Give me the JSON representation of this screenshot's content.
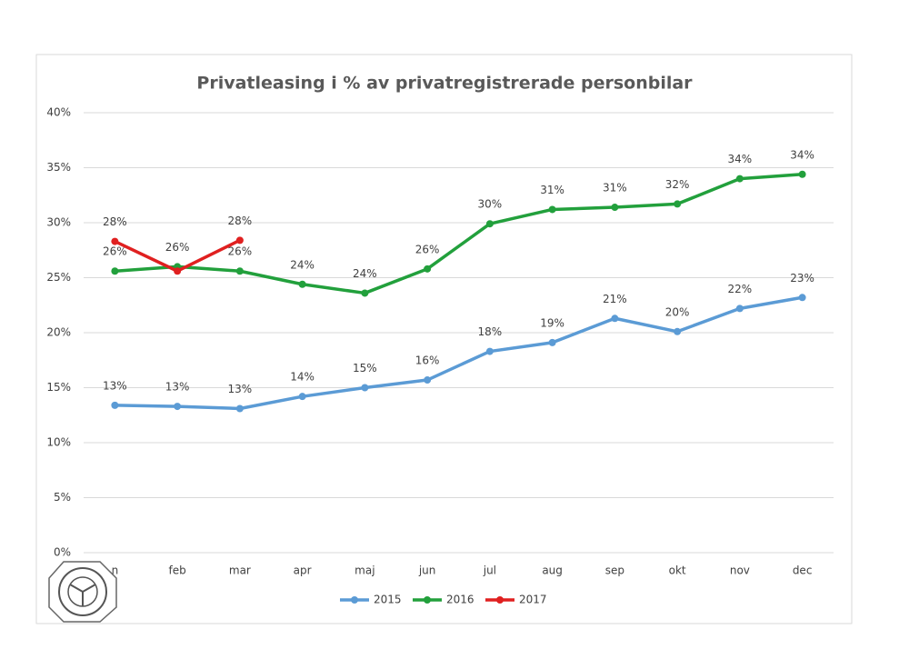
{
  "chart_data": {
    "type": "line",
    "title": "Privatleasing i % av privatregistrerade personbilar",
    "categories": [
      "n",
      "feb",
      "mar",
      "apr",
      "maj",
      "jun",
      "jul",
      "aug",
      "sep",
      "okt",
      "nov",
      "dec"
    ],
    "series": [
      {
        "name": "2015",
        "color": "#5b9bd5",
        "values": [
          13.4,
          13.3,
          13.1,
          14.2,
          15.0,
          15.7,
          18.3,
          19.1,
          21.3,
          20.1,
          22.2,
          23.2
        ],
        "value_labels": [
          "13%",
          "13%",
          "13%",
          "14%",
          "15%",
          "16%",
          "18%",
          "19%",
          "21%",
          "20%",
          "22%",
          "23%"
        ]
      },
      {
        "name": "2016",
        "color": "#22a03c",
        "values": [
          25.6,
          26.0,
          25.6,
          24.4,
          23.6,
          25.8,
          29.9,
          31.2,
          31.4,
          31.7,
          34.0,
          34.4
        ],
        "value_labels": [
          "26%",
          "26%",
          "26%",
          "24%",
          "24%",
          "26%",
          "30%",
          "31%",
          "31%",
          "32%",
          "34%",
          "34%"
        ]
      },
      {
        "name": "2017",
        "color": "#e02020",
        "values": [
          28.3,
          25.6,
          28.4,
          null,
          null,
          null,
          null,
          null,
          null,
          null,
          null,
          null
        ],
        "value_labels": [
          "28%",
          null,
          "28%",
          null,
          null,
          null,
          null,
          null,
          null,
          null,
          null,
          null
        ]
      }
    ],
    "ylim": [
      0,
      40
    ],
    "yticks": [
      {
        "value": 0,
        "label": "0%"
      },
      {
        "value": 5,
        "label": "5%"
      },
      {
        "value": 10,
        "label": "10%"
      },
      {
        "value": 15,
        "label": "15%"
      },
      {
        "value": 20,
        "label": "20%"
      },
      {
        "value": 25,
        "label": "25%"
      },
      {
        "value": 30,
        "label": "30%"
      },
      {
        "value": 35,
        "label": "35%"
      },
      {
        "value": 40,
        "label": "40%"
      }
    ],
    "grid": true,
    "legend": "bottom"
  }
}
